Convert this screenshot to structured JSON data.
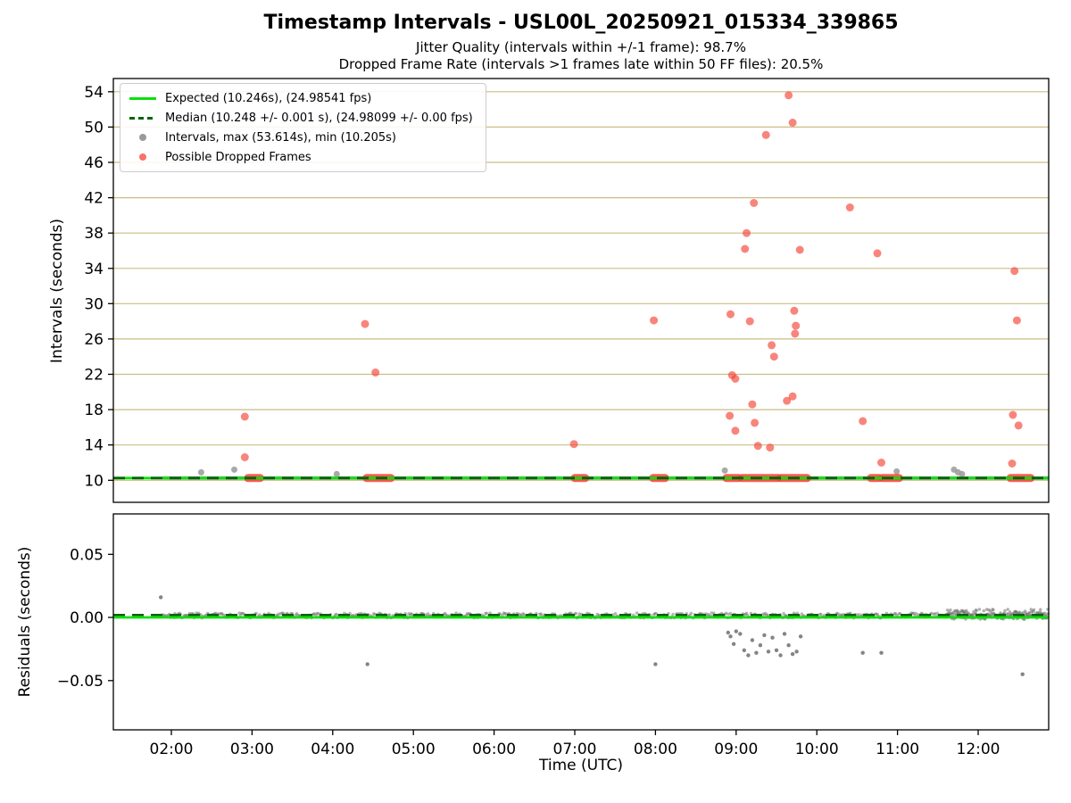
{
  "chart_data": {
    "type": "scatter",
    "title": "Timestamp Intervals - USL00L_20250921_015334_339865",
    "subtitle1": "Jitter Quality (intervals within +/-1 frame): 98.7%",
    "subtitle2": "Dropped Frame Rate (intervals >1 frames late within 50 FF files): 20.5%",
    "xlabel": "Time (UTC)",
    "xlim": [
      1.281,
      12.874
    ],
    "xticks": [
      {
        "hr": 2,
        "label": "02:00"
      },
      {
        "hr": 3,
        "label": "03:00"
      },
      {
        "hr": 4,
        "label": "04:00"
      },
      {
        "hr": 5,
        "label": "05:00"
      },
      {
        "hr": 6,
        "label": "06:00"
      },
      {
        "hr": 7,
        "label": "07:00"
      },
      {
        "hr": 8,
        "label": "08:00"
      },
      {
        "hr": 9,
        "label": "09:00"
      },
      {
        "hr": 10,
        "label": "10:00"
      },
      {
        "hr": 11,
        "label": "11:00"
      },
      {
        "hr": 12,
        "label": "12:00"
      }
    ],
    "stats": {
      "expected_s": 10.246,
      "expected_fps": 24.98541,
      "median_s": 10.248,
      "median_fps": 24.98099,
      "max_s": 53.614,
      "min_s": 10.205,
      "jitter_quality_pct": 98.7,
      "dropped_frame_rate_pct": 20.5,
      "ff_files": 50
    },
    "legend": [
      {
        "type": "line",
        "label": "Expected (10.246s), (24.98541 fps)"
      },
      {
        "type": "dashed",
        "label": "Median (10.248 +/- 0.001 s), (24.98099 +/- 0.00 fps)"
      },
      {
        "type": "dot",
        "label": "Intervals, max (53.614s), min (10.205s)"
      },
      {
        "type": "dot",
        "label": "Possible Dropped Frames"
      }
    ],
    "colors": {
      "grid": "#ccbd83",
      "expected": "#0ae00a",
      "median": "#006400",
      "interval": "#9a9a9a",
      "dropped": "#f44336"
    },
    "top": {
      "ylabel": "Intervals (seconds)",
      "ylim": [
        7.5,
        55.5
      ],
      "yticks": [
        10,
        14,
        18,
        22,
        26,
        30,
        34,
        38,
        42,
        46,
        50,
        54
      ],
      "expected": 10.246,
      "median": 10.248,
      "baseline": {
        "start": 1.89,
        "end": 12.87
      },
      "red_segments": [
        [
          2.95,
          3.1
        ],
        [
          4.42,
          4.72
        ],
        [
          7.0,
          7.13
        ],
        [
          7.97,
          8.12
        ],
        [
          8.88,
          9.03
        ],
        [
          9.07,
          9.52
        ],
        [
          9.55,
          9.88
        ],
        [
          10.67,
          10.77
        ],
        [
          10.81,
          11.02
        ],
        [
          12.4,
          12.65
        ]
      ],
      "red_points": [
        [
          2.91,
          17.2
        ],
        [
          2.91,
          12.6
        ],
        [
          4.4,
          27.7
        ],
        [
          4.53,
          22.2
        ],
        [
          6.99,
          14.1
        ],
        [
          7.98,
          28.1
        ],
        [
          8.93,
          28.8
        ],
        [
          8.95,
          21.9
        ],
        [
          8.99,
          21.5
        ],
        [
          8.92,
          17.3
        ],
        [
          8.99,
          15.6
        ],
        [
          9.13,
          38.0
        ],
        [
          9.11,
          36.2
        ],
        [
          9.17,
          28.0
        ],
        [
          9.2,
          18.6
        ],
        [
          9.23,
          16.5
        ],
        [
          9.27,
          13.9
        ],
        [
          9.22,
          41.4
        ],
        [
          9.37,
          49.1
        ],
        [
          9.44,
          25.3
        ],
        [
          9.47,
          24.0
        ],
        [
          9.42,
          13.7
        ],
        [
          9.65,
          53.6
        ],
        [
          9.7,
          50.5
        ],
        [
          9.72,
          29.2
        ],
        [
          9.74,
          27.5
        ],
        [
          9.73,
          26.6
        ],
        [
          9.7,
          19.5
        ],
        [
          9.63,
          19.0
        ],
        [
          9.79,
          36.1
        ],
        [
          10.41,
          40.9
        ],
        [
          10.57,
          16.7
        ],
        [
          10.75,
          35.7
        ],
        [
          10.8,
          12.0
        ],
        [
          12.45,
          33.7
        ],
        [
          12.48,
          28.1
        ],
        [
          12.43,
          17.4
        ],
        [
          12.5,
          16.2
        ],
        [
          12.42,
          11.9
        ]
      ],
      "gray_points": [
        [
          2.37,
          10.9
        ],
        [
          2.78,
          11.2
        ],
        [
          4.05,
          10.7
        ],
        [
          8.86,
          11.1
        ],
        [
          10.99,
          11.0
        ],
        [
          11.7,
          11.2
        ],
        [
          11.75,
          10.9
        ],
        [
          11.8,
          10.7
        ]
      ]
    },
    "bottom": {
      "ylabel": "Residuals (seconds)",
      "ylim": [
        -0.089,
        0.082
      ],
      "yticks": [
        {
          "value": -0.05,
          "label": "−0.05"
        },
        {
          "value": 0.0,
          "label": "0.00"
        },
        {
          "value": 0.05,
          "label": "0.05"
        }
      ],
      "median": 0.002,
      "baseline": {
        "start": 1.89,
        "end": 12.87,
        "value": 0.0015
      },
      "points": [
        [
          1.87,
          0.016
        ],
        [
          4.43,
          -0.037
        ],
        [
          8.0,
          -0.037
        ],
        [
          8.9,
          -0.012
        ],
        [
          8.93,
          -0.015
        ],
        [
          8.97,
          -0.021
        ],
        [
          9.0,
          -0.011
        ],
        [
          9.05,
          -0.013
        ],
        [
          9.1,
          -0.026
        ],
        [
          9.15,
          -0.03
        ],
        [
          9.2,
          -0.018
        ],
        [
          9.25,
          -0.028
        ],
        [
          9.3,
          -0.022
        ],
        [
          9.35,
          -0.014
        ],
        [
          9.4,
          -0.027
        ],
        [
          9.45,
          -0.016
        ],
        [
          9.5,
          -0.026
        ],
        [
          9.55,
          -0.03
        ],
        [
          9.6,
          -0.013
        ],
        [
          9.65,
          -0.022
        ],
        [
          9.7,
          -0.029
        ],
        [
          9.75,
          -0.027
        ],
        [
          9.8,
          -0.015
        ],
        [
          10.57,
          -0.028
        ],
        [
          10.8,
          -0.028
        ],
        [
          12.55,
          -0.045
        ]
      ]
    }
  }
}
